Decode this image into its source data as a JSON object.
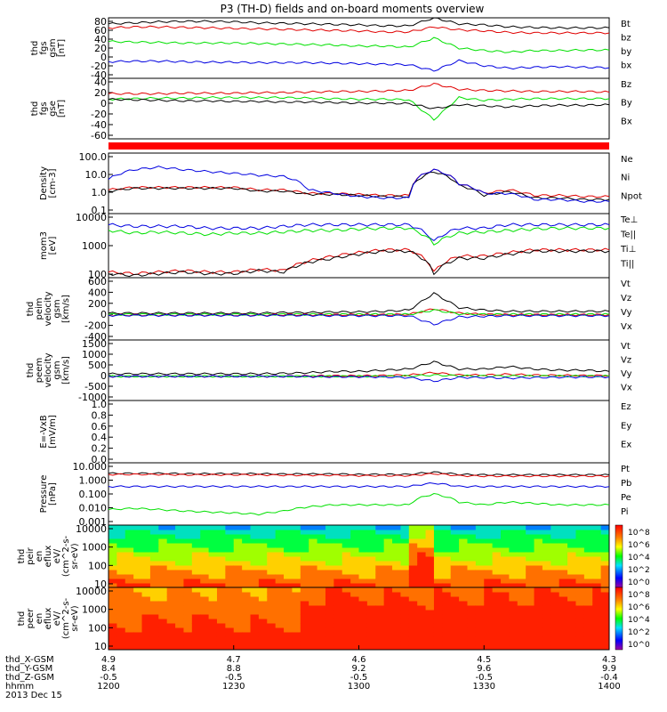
{
  "title": "P3 (TH-D) fields and on-board moments overview",
  "colors": {
    "black": "#000000",
    "red": "#e00000",
    "green": "#00e000",
    "blue": "#0000e0",
    "bar": "#ff0000"
  },
  "chart_data": [
    {
      "type": "line",
      "ylabel": [
        "thd",
        "fgs",
        "gsm",
        "[nT]"
      ],
      "ylim": [
        -40,
        80
      ],
      "yticks": [
        "80",
        "60",
        "40",
        "20",
        "0",
        "-20",
        "-40"
      ],
      "series": [
        {
          "name": "Bt",
          "color": "black",
          "values": [
            68,
            70,
            72,
            73,
            73,
            72,
            70,
            69,
            68,
            67,
            66,
            64,
            64,
            80,
            68,
            66,
            62,
            61,
            60,
            60,
            60
          ]
        },
        {
          "name": "bz",
          "color": "red",
          "values": [
            60,
            62,
            62,
            61,
            60,
            59,
            58,
            57,
            56,
            55,
            54,
            52,
            52,
            62,
            56,
            54,
            51,
            50,
            50,
            50,
            50
          ]
        },
        {
          "name": "by",
          "color": "green",
          "values": [
            33,
            32,
            31,
            30,
            30,
            30,
            29,
            28,
            27,
            26,
            24,
            24,
            22,
            40,
            20,
            15,
            12,
            15,
            15,
            16,
            16
          ]
        },
        {
          "name": "bx",
          "color": "blue",
          "values": [
            -7,
            -6,
            -6,
            -7,
            -8,
            -8,
            -9,
            -9,
            -9,
            -10,
            -11,
            -12,
            -13,
            -25,
            -5,
            -15,
            -20,
            -18,
            -17,
            -18,
            -19
          ]
        }
      ]
    },
    {
      "type": "line",
      "ylabel": [
        "thd",
        "fgs",
        "gse",
        "[nT]"
      ],
      "ylim": [
        -70,
        40
      ],
      "yticks": [
        "40",
        "20",
        "0",
        "-20",
        "-40",
        "-60"
      ],
      "series": [
        {
          "name": "Bz",
          "color": "red",
          "values": [
            12,
            12,
            12,
            13,
            13,
            13,
            14,
            14,
            15,
            16,
            16,
            17,
            18,
            30,
            20,
            18,
            17,
            16,
            16,
            16,
            15
          ]
        },
        {
          "name": "By",
          "color": "green",
          "values": [
            2,
            3,
            4,
            4,
            5,
            5,
            5,
            5,
            4,
            3,
            2,
            2,
            1,
            -35,
            5,
            0,
            2,
            3,
            3,
            3,
            3
          ]
        },
        {
          "name": "Bx",
          "color": "black",
          "values": [
            2,
            1,
            0,
            -1,
            -1,
            -2,
            -2,
            -3,
            -3,
            -4,
            -5,
            -5,
            -6,
            -15,
            -8,
            -10,
            -12,
            -10,
            -9,
            -9,
            -8
          ]
        }
      ]
    },
    {
      "type": "bar",
      "description": "red status bar"
    },
    {
      "type": "line",
      "scale": "log",
      "ylabel": [
        "Density",
        "[cm-3]"
      ],
      "ylim": [
        0.1,
        100
      ],
      "yticks": [
        "100.0",
        "10.0",
        "1.0",
        "0.1"
      ],
      "series": [
        {
          "name": "Ne",
          "color": "red",
          "values": [
            1.5,
            2,
            2,
            2,
            2,
            2,
            1.5,
            1.5,
            1,
            1,
            0.9,
            0.8,
            0.8,
            15,
            3,
            1,
            1.5,
            0.8,
            0.8,
            0.7,
            0.7
          ]
        },
        {
          "name": "Ni",
          "color": "black",
          "values": [
            1.3,
            1.8,
            1.8,
            1.8,
            1.8,
            1.8,
            1.3,
            1.3,
            0.9,
            0.9,
            0.8,
            0.7,
            0.7,
            12,
            2.5,
            0.8,
            1.2,
            0.6,
            0.6,
            0.5,
            0.5
          ]
        },
        {
          "name": "Npot",
          "color": "blue",
          "values": [
            5,
            15,
            20,
            15,
            12,
            10,
            8,
            7,
            1.5,
            1,
            0.7,
            0.6,
            0.6,
            15,
            3,
            1,
            1,
            0.5,
            0.5,
            0.4,
            0.4
          ]
        }
      ]
    },
    {
      "type": "line",
      "scale": "log",
      "ylabel": [
        "mom3",
        "[eV]"
      ],
      "ylim": [
        50,
        10000
      ],
      "yticks": [
        "10000",
        "1000",
        "100"
      ],
      "series": [
        {
          "name": "Te⊥",
          "color": "red",
          "values": [
            80,
            70,
            80,
            90,
            80,
            80,
            100,
            90,
            200,
            300,
            400,
            500,
            500,
            80,
            300,
            300,
            400,
            500,
            500,
            500,
            500
          ]
        },
        {
          "name": "Te||",
          "color": "black",
          "values": [
            70,
            60,
            70,
            80,
            70,
            70,
            90,
            80,
            180,
            250,
            350,
            450,
            450,
            70,
            250,
            250,
            350,
            450,
            450,
            450,
            450
          ]
        },
        {
          "name": "Ti⊥",
          "color": "blue",
          "values": [
            4000,
            3500,
            3500,
            3500,
            3000,
            3000,
            3000,
            3500,
            4000,
            4000,
            4000,
            4000,
            4000,
            1000,
            3000,
            3000,
            4000,
            4000,
            4000,
            4000,
            4000
          ]
        },
        {
          "name": "Ti||",
          "color": "green",
          "values": [
            2500,
            2000,
            2200,
            2000,
            1800,
            2000,
            2000,
            2200,
            2500,
            2500,
            2800,
            3000,
            3000,
            800,
            2000,
            2200,
            2500,
            2800,
            3000,
            3000,
            3000
          ]
        }
      ]
    },
    {
      "type": "line",
      "ylabel": [
        "thd",
        "peim",
        "velocity",
        "gsm",
        "[km/s]"
      ],
      "ylim": [
        -400,
        600
      ],
      "yticks": [
        "600",
        "400",
        "200",
        "0",
        "-200",
        "-400"
      ],
      "series": [
        {
          "name": "Vt",
          "color": "black",
          "values": [
            30,
            30,
            30,
            30,
            30,
            30,
            30,
            40,
            40,
            50,
            50,
            60,
            80,
            350,
            120,
            80,
            60,
            60,
            60,
            60,
            60
          ]
        },
        {
          "name": "Vz",
          "color": "red",
          "values": [
            0,
            0,
            0,
            0,
            0,
            0,
            0,
            5,
            5,
            5,
            5,
            5,
            10,
            100,
            30,
            10,
            5,
            5,
            5,
            5,
            5
          ]
        },
        {
          "name": "Vy",
          "color": "green",
          "values": [
            10,
            10,
            10,
            10,
            10,
            10,
            10,
            10,
            10,
            10,
            10,
            10,
            10,
            80,
            20,
            10,
            10,
            10,
            10,
            10,
            10
          ]
        },
        {
          "name": "Vx",
          "color": "blue",
          "values": [
            -5,
            -5,
            -5,
            -5,
            -5,
            -5,
            -5,
            -5,
            -5,
            -10,
            -10,
            -10,
            -10,
            -150,
            -30,
            -20,
            -10,
            -10,
            -10,
            -10,
            -10
          ]
        }
      ]
    },
    {
      "type": "line",
      "ylabel": [
        "thd",
        "peem",
        "velocity",
        "gsm",
        "[km/s]"
      ],
      "ylim": [
        -1000,
        1500
      ],
      "yticks": [
        "1500",
        "1000",
        "500",
        "0",
        "-500",
        "-1000"
      ],
      "series": [
        {
          "name": "Vt",
          "color": "black",
          "values": [
            100,
            100,
            100,
            100,
            100,
            100,
            100,
            120,
            150,
            200,
            200,
            250,
            300,
            600,
            300,
            300,
            400,
            300,
            250,
            250,
            200
          ]
        },
        {
          "name": "Vz",
          "color": "red",
          "values": [
            0,
            0,
            0,
            0,
            0,
            0,
            0,
            0,
            10,
            20,
            20,
            30,
            50,
            150,
            50,
            50,
            80,
            50,
            40,
            30,
            30
          ]
        },
        {
          "name": "Vy",
          "color": "green",
          "values": [
            0,
            0,
            0,
            0,
            0,
            0,
            0,
            0,
            0,
            0,
            0,
            0,
            10,
            50,
            20,
            10,
            10,
            10,
            10,
            10,
            10
          ]
        },
        {
          "name": "Vx",
          "color": "blue",
          "values": [
            0,
            0,
            0,
            0,
            0,
            0,
            0,
            0,
            -10,
            -20,
            -20,
            -30,
            -50,
            -200,
            -50,
            -50,
            -80,
            -50,
            -40,
            -30,
            -30
          ]
        }
      ]
    },
    {
      "type": "line",
      "ylabel": [
        "E=-VxB",
        "[mV/m]"
      ],
      "ylim": [
        0,
        1
      ],
      "yticks": [
        "1.0",
        "0.8",
        "0.6",
        "0.4",
        "0.2",
        "0.0"
      ],
      "series": [
        {
          "name": "Ez",
          "color": "red",
          "values": []
        },
        {
          "name": "Ey",
          "color": "green",
          "values": []
        },
        {
          "name": "Ex",
          "color": "blue",
          "values": []
        }
      ]
    },
    {
      "type": "line",
      "scale": "log",
      "ylabel": [
        "Pressure",
        "[nPa]"
      ],
      "ylim": [
        0.001,
        10
      ],
      "yticks": [
        "10.000",
        "1.000",
        "0.100",
        "0.010",
        "0.001"
      ],
      "series": [
        {
          "name": "Pt",
          "color": "black",
          "values": [
            2.1,
            2.1,
            2.1,
            2.0,
            2.0,
            2.0,
            2.0,
            1.9,
            1.9,
            1.9,
            1.8,
            1.8,
            1.8,
            2.5,
            1.8,
            1.7,
            1.7,
            1.7,
            1.7,
            1.7,
            1.7
          ]
        },
        {
          "name": "Pb",
          "color": "red",
          "values": [
            1.8,
            1.8,
            1.8,
            1.7,
            1.7,
            1.7,
            1.7,
            1.6,
            1.6,
            1.6,
            1.5,
            1.5,
            1.5,
            2.0,
            1.5,
            1.4,
            1.4,
            1.4,
            1.4,
            1.4,
            1.4
          ]
        },
        {
          "name": "Pe",
          "color": "green",
          "values": [
            0.01,
            0.012,
            0.01,
            0.008,
            0.007,
            0.006,
            0.005,
            0.008,
            0.015,
            0.02,
            0.02,
            0.02,
            0.02,
            0.1,
            0.03,
            0.02,
            0.03,
            0.025,
            0.02,
            0.02,
            0.02
          ]
        },
        {
          "name": "Pi",
          "color": "blue",
          "values": [
            0.3,
            0.3,
            0.3,
            0.3,
            0.3,
            0.3,
            0.3,
            0.3,
            0.3,
            0.3,
            0.3,
            0.3,
            0.3,
            0.5,
            0.3,
            0.3,
            0.3,
            0.3,
            0.3,
            0.3,
            0.3
          ]
        }
      ]
    },
    {
      "type": "heatmap",
      "ylabel": [
        "thd",
        "peir",
        "en",
        "eflux",
        "eV/",
        "(cm^2-s-",
        "sr-eV)"
      ],
      "yticks": [
        "10000",
        "1000",
        "100",
        "10"
      ],
      "colorbar_ticks": [
        "10^8",
        "10^6",
        "10^4",
        "10^2",
        "10^0"
      ]
    },
    {
      "type": "heatmap",
      "ylabel": [
        "thd",
        "peer",
        "en",
        "eflux",
        "eV/",
        "(cm^2-s-",
        "sr-eV)"
      ],
      "yticks": [
        "10000",
        "1000",
        "100",
        "10"
      ],
      "colorbar_ticks": [
        "10^8",
        "10^6",
        "10^4",
        "10^2",
        "10^0"
      ]
    }
  ],
  "xaxis": {
    "rows": [
      {
        "label": "thd_X-GSM",
        "values": [
          "4.9",
          "4.7",
          "4.6",
          "4.5",
          "4.3"
        ]
      },
      {
        "label": "thd_Y-GSM",
        "values": [
          "8.4",
          "8.8",
          "9.2",
          "9.6",
          "9.9"
        ]
      },
      {
        "label": "thd_Z-GSM",
        "values": [
          "-0.5",
          "-0.5",
          "-0.5",
          "-0.5",
          "-0.4"
        ]
      },
      {
        "label": "hhmm",
        "values": [
          "1200",
          "1230",
          "1300",
          "1330",
          "1400"
        ]
      }
    ],
    "date": "2013 Dec 15"
  }
}
